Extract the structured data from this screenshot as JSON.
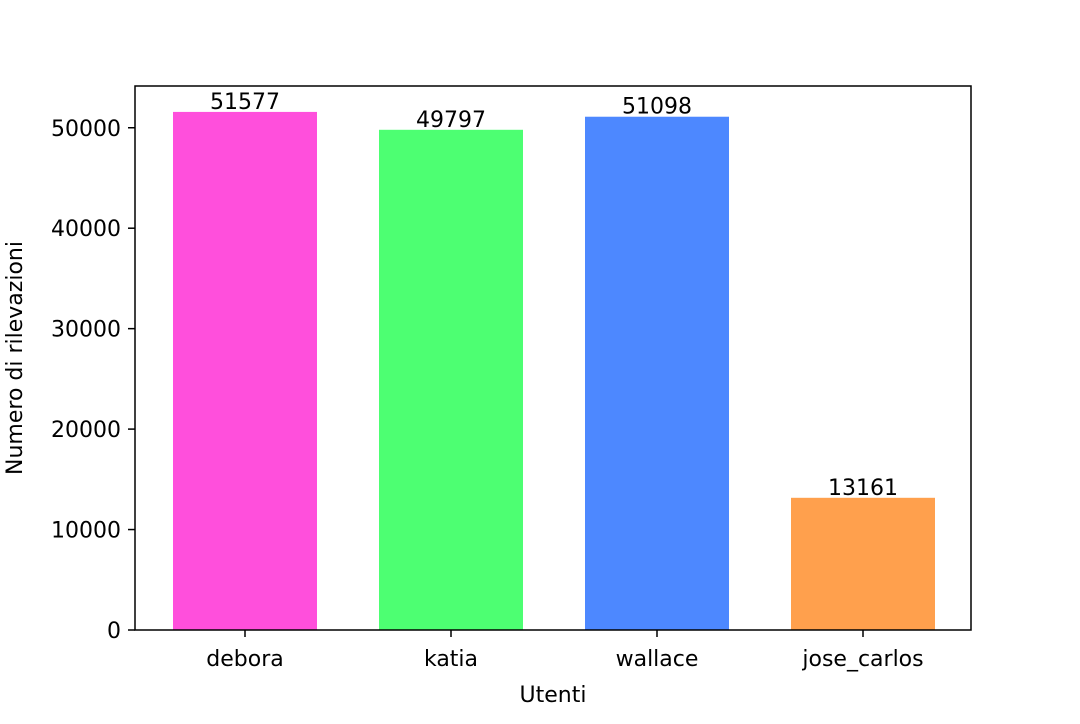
{
  "chart_data": {
    "type": "bar",
    "title": "",
    "xlabel": "Utenti",
    "ylabel": "Numero di rilevazioni",
    "categories": [
      "debora",
      "katia",
      "wallace",
      "jose_carlos"
    ],
    "values": [
      51577,
      49797,
      51098,
      13161
    ],
    "data_labels": [
      "51577",
      "49797",
      "51098",
      "13161"
    ],
    "colors": [
      "#ff4fdc",
      "#4dff72",
      "#4d88ff",
      "#ffa04d"
    ],
    "ylim": [
      0,
      54157
    ],
    "yticks": [
      0,
      10000,
      20000,
      30000,
      40000,
      50000
    ],
    "ytick_labels": [
      "0",
      "10000",
      "20000",
      "30000",
      "40000",
      "50000"
    ],
    "grid": false,
    "legend": "none"
  }
}
